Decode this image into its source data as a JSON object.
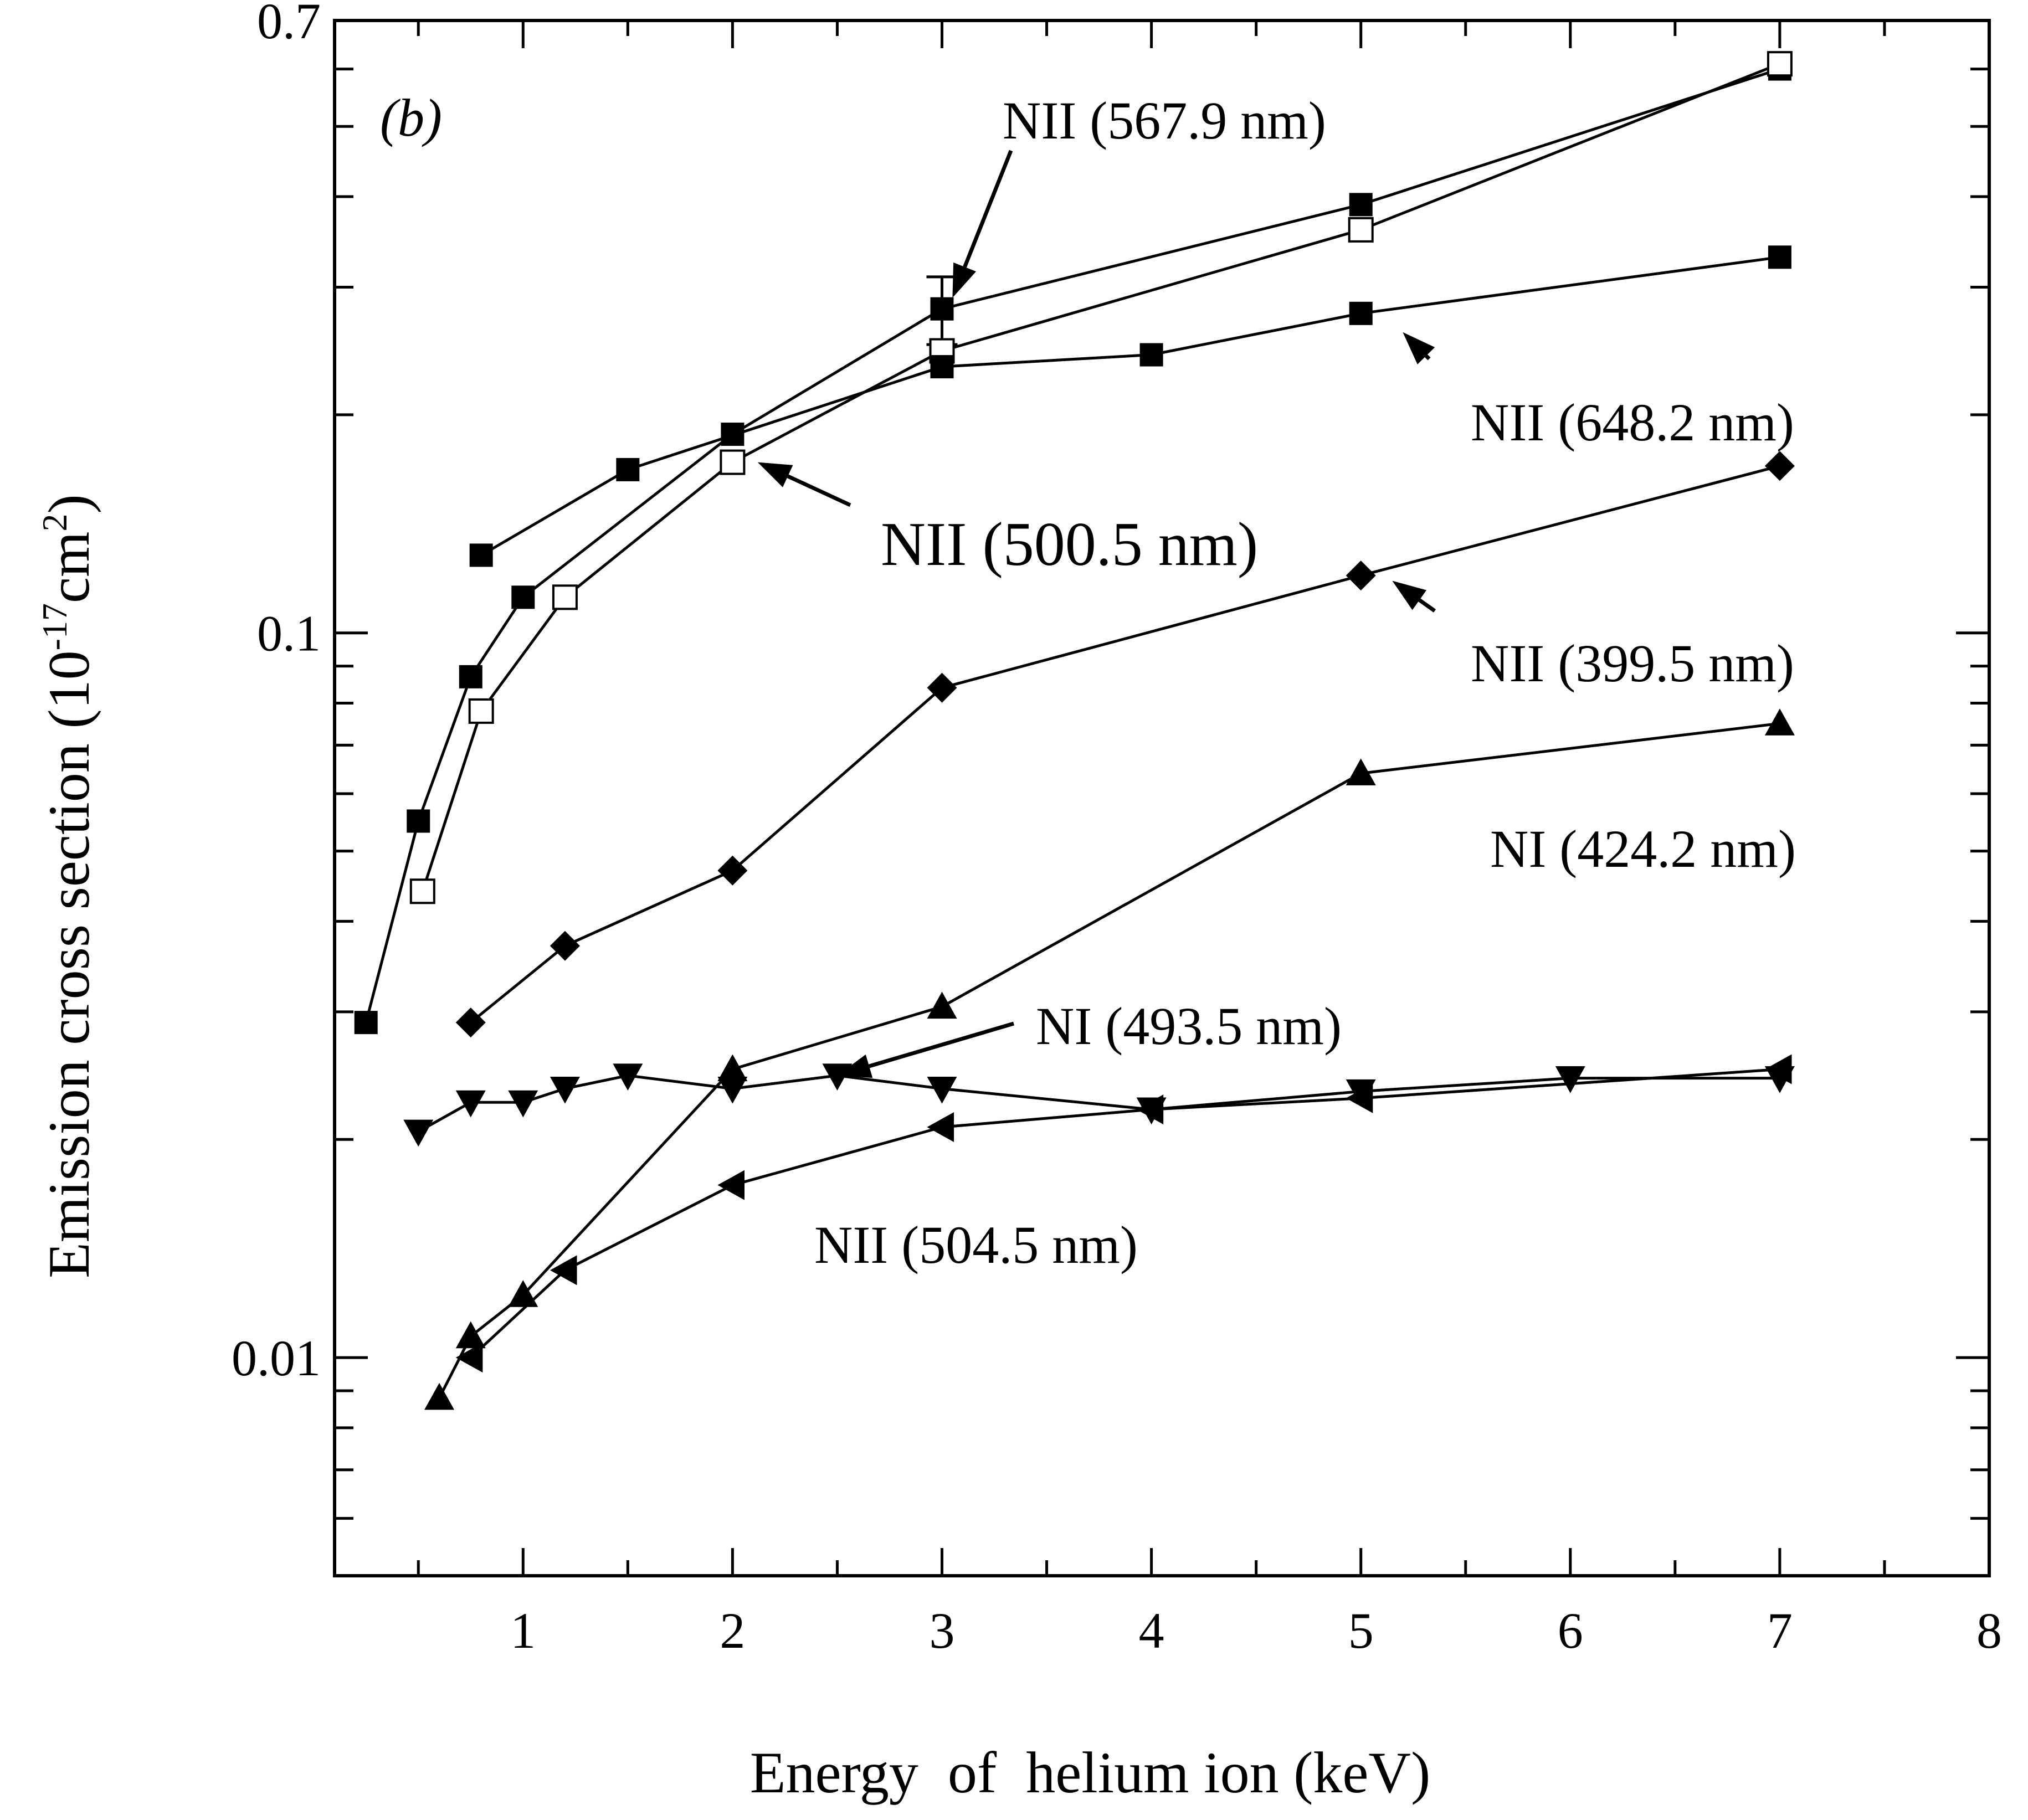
{
  "chart_data": {
    "type": "line",
    "panel_label": "b",
    "xlabel": "Energy  of  helium ion (keV)",
    "ylabel_prefix": "Emission cross section (10",
    "ylabel_exp": "-17",
    "ylabel_unit": "cm",
    "ylabel_unit_exp": "2",
    "ylabel_suffix": ")",
    "xlim": [
      0.1,
      8
    ],
    "ylim": [
      0.005,
      0.7
    ],
    "yscale": "log",
    "x_ticks": [
      1,
      2,
      3,
      4,
      5,
      6,
      7,
      8
    ],
    "x_tick_labels": [
      "1",
      "2",
      "3",
      "4",
      "5",
      "6",
      "7",
      "8"
    ],
    "y_ticks": [
      0.01,
      0.1,
      0.7
    ],
    "y_tick_labels": [
      "0.01",
      "0.1",
      "0.7"
    ],
    "series": [
      {
        "name": "NII (567.9 nm)",
        "marker": "square-filled",
        "x": [
          0.25,
          0.5,
          0.75,
          1.0,
          2.0,
          3.0,
          5.0,
          7.0
        ],
        "y": [
          0.029,
          0.055,
          0.087,
          0.112,
          0.188,
          0.28,
          0.39,
          0.6
        ],
        "error_bar": {
          "x": 3.0,
          "low": 0.25,
          "high": 0.31
        }
      },
      {
        "name": "NII (500.5 nm)",
        "marker": "square-open",
        "x": [
          0.52,
          0.8,
          1.2,
          2.0,
          3.0,
          5.0,
          7.0
        ],
        "y": [
          0.044,
          0.078,
          0.112,
          0.172,
          0.245,
          0.36,
          0.61
        ]
      },
      {
        "name": "NII (648.2 nm)",
        "marker": "square-filled",
        "x": [
          0.8,
          1.5,
          3.0,
          4.0,
          5.0,
          7.0
        ],
        "y": [
          0.128,
          0.168,
          0.233,
          0.242,
          0.276,
          0.33
        ]
      },
      {
        "name": "NII (399.5 nm)",
        "marker": "diamond-filled",
        "x": [
          0.75,
          1.2,
          2.0,
          3.0,
          5.0,
          7.0
        ],
        "y": [
          0.029,
          0.037,
          0.047,
          0.084,
          0.12,
          0.17
        ]
      },
      {
        "name": "NI (424.2 nm)",
        "marker": "triangle-up-filled",
        "x": [
          0.6,
          0.75,
          1.0,
          2.0,
          3.0,
          5.0,
          7.0
        ],
        "y": [
          0.0088,
          0.0107,
          0.0122,
          0.025,
          0.0305,
          0.064,
          0.075
        ]
      },
      {
        "name": "NI (493.5 nm)",
        "marker": "triangle-down-filled",
        "x": [
          0.5,
          0.75,
          1.0,
          1.2,
          1.5,
          2.0,
          2.5,
          3.0,
          4.0,
          5.0,
          6.0,
          7.0
        ],
        "y": [
          0.0205,
          0.0225,
          0.0225,
          0.0235,
          0.0245,
          0.0235,
          0.0245,
          0.0235,
          0.022,
          0.0233,
          0.0243,
          0.0243
        ]
      },
      {
        "name": "NII (504.5 nm)",
        "marker": "triangle-left-filled",
        "x": [
          0.75,
          1.2,
          2.0,
          3.0,
          4.0,
          5.0,
          7.0
        ],
        "y": [
          0.01,
          0.0132,
          0.0173,
          0.0208,
          0.022,
          0.0228,
          0.025
        ]
      }
    ],
    "annotations": [
      {
        "text": "NII (567.9 nm)",
        "arrow_to": [
          3.05,
          0.29
        ]
      },
      {
        "text": "NII (648.2 nm)",
        "arrow_to": [
          5.2,
          0.26
        ]
      },
      {
        "text": "NII (500.5 nm)",
        "arrow_to": [
          2.12,
          0.172
        ]
      },
      {
        "text": "NII (399.5 nm)",
        "arrow_to": [
          5.15,
          0.118
        ]
      },
      {
        "text": "NI (424.2 nm)",
        "arrow_to": null
      },
      {
        "text": "NI (493.5 nm)",
        "arrow_to": [
          2.5,
          0.0245
        ]
      },
      {
        "text": "NII (504.5 nm)",
        "arrow_to": null
      }
    ]
  }
}
